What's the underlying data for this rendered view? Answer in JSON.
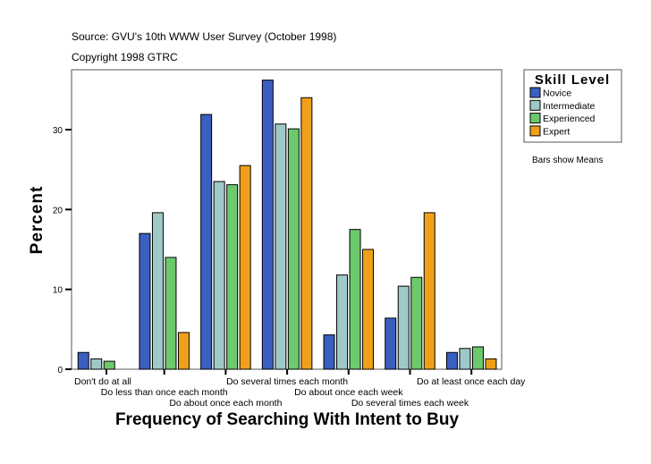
{
  "chart_data": {
    "type": "bar",
    "source": "Source: GVU's 10th WWW User Survey (October 1998)",
    "copyright": "Copyright 1998 GTRC",
    "xlabel": "Frequency of Searching With Intent to Buy",
    "ylabel": "Percent",
    "ylim": [
      0,
      37.5
    ],
    "yticks": [
      0,
      10,
      20,
      30
    ],
    "grid": false,
    "legend_title": "Skill Level",
    "legend_placement": "right",
    "note": "Bars show Means",
    "categories": [
      "Don't do at all",
      "Do less than once each month",
      "Do about once each month",
      "Do several times each month",
      "Do about once each week",
      "Do several times each week",
      "Do at least once each day"
    ],
    "series": [
      {
        "name": "Novice",
        "color": "#3a5fc0",
        "values": [
          2.1,
          17.0,
          31.9,
          36.2,
          4.3,
          6.4,
          2.1
        ]
      },
      {
        "name": "Intermediate",
        "color": "#9fc8c8",
        "values": [
          1.3,
          19.6,
          23.5,
          30.7,
          11.8,
          10.4,
          2.6
        ]
      },
      {
        "name": "Experienced",
        "color": "#6cc96c",
        "values": [
          1.0,
          14.0,
          23.1,
          30.1,
          17.5,
          11.5,
          2.8
        ]
      },
      {
        "name": "Expert",
        "color": "#f0a018",
        "values": [
          null,
          4.6,
          25.5,
          34.0,
          15.0,
          19.6,
          1.3
        ]
      }
    ]
  }
}
